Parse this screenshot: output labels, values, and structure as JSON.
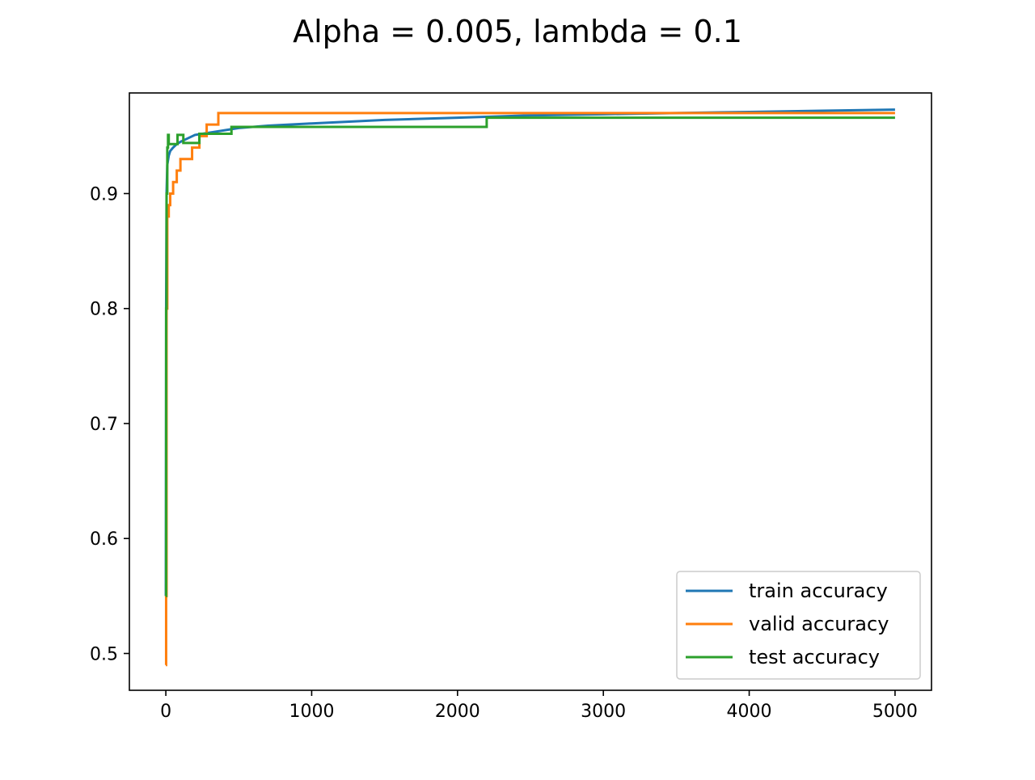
{
  "chart_data": {
    "type": "line",
    "title": "Alpha = 0.005, lambda = 0.1",
    "xlabel": "",
    "ylabel": "",
    "xlim": [
      -250,
      5250
    ],
    "ylim": [
      0.468,
      0.9875
    ],
    "x_ticks": [
      0,
      1000,
      2000,
      3000,
      4000,
      5000
    ],
    "x_tick_labels": [
      "0",
      "1000",
      "2000",
      "3000",
      "4000",
      "5000"
    ],
    "y_ticks": [
      0.5,
      0.6,
      0.7,
      0.8,
      0.9
    ],
    "y_tick_labels": [
      "0.5",
      "0.6",
      "0.7",
      "0.8",
      "0.9"
    ],
    "grid": false,
    "legend_position": "lower right",
    "series": [
      {
        "name": "train accuracy",
        "color": "#1f77b4",
        "step": false,
        "x": [
          0,
          2,
          5,
          10,
          20,
          30,
          50,
          75,
          100,
          150,
          200,
          300,
          400,
          500,
          700,
          1000,
          1500,
          2000,
          2500,
          3000,
          3500,
          4000,
          4500,
          5000
        ],
        "y": [
          0.55,
          0.8,
          0.9,
          0.925,
          0.933,
          0.937,
          0.94,
          0.943,
          0.945,
          0.948,
          0.951,
          0.953,
          0.955,
          0.957,
          0.959,
          0.961,
          0.964,
          0.966,
          0.968,
          0.969,
          0.97,
          0.971,
          0.972,
          0.973
        ]
      },
      {
        "name": "valid accuracy",
        "color": "#ff7f0e",
        "step": true,
        "x": [
          0,
          2,
          5,
          10,
          20,
          30,
          50,
          75,
          100,
          150,
          180,
          200,
          230,
          280,
          320,
          360,
          5000
        ],
        "y": [
          0.49,
          0.55,
          0.8,
          0.88,
          0.89,
          0.9,
          0.91,
          0.92,
          0.93,
          0.93,
          0.94,
          0.94,
          0.95,
          0.96,
          0.96,
          0.97,
          0.97
        ]
      },
      {
        "name": "test accuracy",
        "color": "#2ca02c",
        "step": true,
        "x": [
          0,
          2,
          5,
          10,
          15,
          20,
          30,
          60,
          80,
          100,
          120,
          150,
          230,
          300,
          450,
          600,
          2200,
          5000
        ],
        "y": [
          0.55,
          0.8,
          0.9,
          0.94,
          0.951,
          0.943,
          0.943,
          0.943,
          0.951,
          0.951,
          0.944,
          0.944,
          0.952,
          0.952,
          0.958,
          0.958,
          0.966,
          0.966
        ]
      }
    ]
  }
}
